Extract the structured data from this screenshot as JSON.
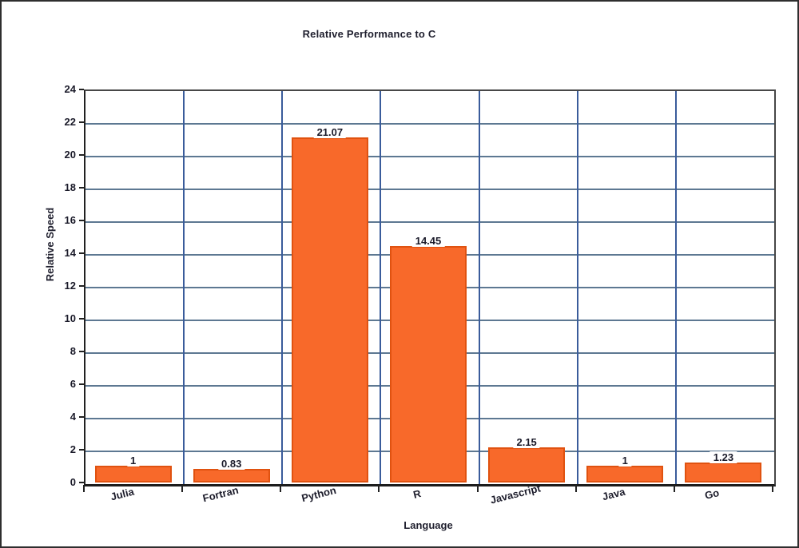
{
  "title": "Relative Performance to C",
  "axes": {
    "xlabel": "Language",
    "ylabel": "Relative Speed"
  },
  "chart_data": {
    "type": "bar",
    "title": "Relative Performance to C",
    "xlabel": "Language",
    "ylabel": "Relative Speed",
    "categories": [
      "Julia",
      "Fortran",
      "Python",
      "R",
      "Javascript",
      "Java",
      "Go"
    ],
    "values": [
      1,
      0.83,
      21.07,
      14.45,
      2.15,
      1,
      1.23
    ],
    "value_labels": [
      "1",
      "0.83",
      "21.07",
      "14.45",
      "2.15",
      "1",
      "1.23"
    ],
    "ylim": [
      0,
      24
    ],
    "ytick_step": 2,
    "ytick_labels": [
      "0",
      "2",
      "4",
      "6",
      "8",
      "10",
      "12",
      "14",
      "16",
      "18",
      "20",
      "22",
      "24"
    ],
    "grid": "horizontal-lines-and-vertical-category-separators",
    "legend": "none",
    "colors": {
      "bar_fill": "#f8692a",
      "bar_border": "#e05210",
      "hgrid": "#5d7892",
      "vgrid": "#3a5c9b",
      "plot_frame": "#474747",
      "axis_line": "#1c1c1c",
      "text": "#1b1b2a",
      "background": "#ffffff"
    }
  }
}
